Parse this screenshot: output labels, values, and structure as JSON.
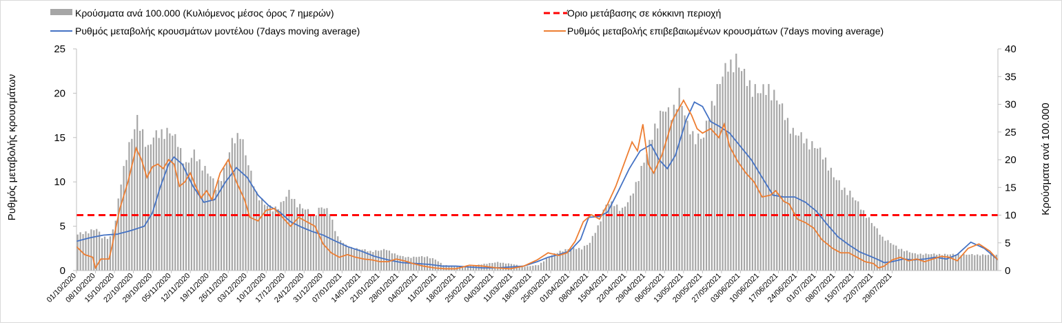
{
  "chart_data": {
    "type": "bar+line",
    "title": "",
    "legend": [
      {
        "key": "bars",
        "label": "Κρούσματα ανά 100.000 (Κυλιόμενος μέσος όρος 7 ημερών)",
        "color": "#a6a6a6"
      },
      {
        "key": "threshold",
        "label": "Όριο μετάβασης σε κόκκινη περιοχή",
        "color": "#ff0000"
      },
      {
        "key": "model",
        "label": "Ρυθμός μεταβολής κρουσμάτων μοντέλου (7days moving average)",
        "color": "#4472c4"
      },
      {
        "key": "confirmed",
        "label": "Ρυθμός μεταβολής επιβεβαιωμένων κρουσμάτων (7days moving average)",
        "color": "#ed7d31"
      }
    ],
    "ylabel_left": "Ρυθμός μεταβολής κρουσμάτων",
    "ylabel_right": "Κρούσματα ανά 100.000",
    "ylim_left": [
      0,
      25
    ],
    "yticks_left": [
      "0",
      "5",
      "10",
      "15",
      "20",
      "25"
    ],
    "ylim_right": [
      0,
      40
    ],
    "yticks_right": [
      "0",
      "5",
      "10",
      "15",
      "20",
      "25",
      "30",
      "35",
      "40"
    ],
    "threshold_left": 6.25,
    "x_tick_labels": [
      "01/10/2020",
      "08/10/2020",
      "15/10/2020",
      "22/10/2020",
      "29/10/2020",
      "05/11/2020",
      "12/11/2020",
      "19/11/2020",
      "26/11/2020",
      "03/12/2020",
      "10/12/2020",
      "17/12/2020",
      "24/12/2020",
      "31/12/2020",
      "07/01/2021",
      "14/01/2021",
      "21/01/2021",
      "28/01/2021",
      "04/02/2021",
      "11/02/2021",
      "18/02/2021",
      "25/02/2021",
      "04/03/2021",
      "11/03/2021",
      "18/03/2021",
      "25/03/2021",
      "01/04/2021",
      "08/04/2021",
      "15/04/2021",
      "22/04/2021",
      "29/04/2021",
      "06/05/2021",
      "13/05/2021",
      "20/05/2021",
      "27/05/2021",
      "03/06/2021",
      "10/06/2021",
      "17/06/2021",
      "24/06/2021",
      "01/07/2021",
      "08/07/2021",
      "15/07/2021",
      "22/07/2021",
      "29/07/2021"
    ],
    "days": 310,
    "bars_keypoints_right_axis": [
      [
        0,
        6.5
      ],
      [
        7,
        7.5
      ],
      [
        9,
        6
      ],
      [
        12,
        6
      ],
      [
        14,
        9
      ],
      [
        16,
        16
      ],
      [
        18,
        21
      ],
      [
        20,
        24
      ],
      [
        22,
        27
      ],
      [
        24,
        25
      ],
      [
        26,
        22
      ],
      [
        28,
        24
      ],
      [
        31,
        25
      ],
      [
        34,
        25
      ],
      [
        37,
        23
      ],
      [
        40,
        19
      ],
      [
        43,
        21
      ],
      [
        46,
        19
      ],
      [
        49,
        17
      ],
      [
        51,
        15
      ],
      [
        54,
        18
      ],
      [
        57,
        23
      ],
      [
        60,
        25
      ],
      [
        63,
        19
      ],
      [
        66,
        14
      ],
      [
        69,
        12
      ],
      [
        72,
        11
      ],
      [
        75,
        12
      ],
      [
        78,
        14
      ],
      [
        81,
        12
      ],
      [
        84,
        11
      ],
      [
        87,
        10
      ],
      [
        90,
        11.5
      ],
      [
        93,
        10.5
      ],
      [
        96,
        6
      ],
      [
        99,
        4.5
      ],
      [
        102,
        4
      ],
      [
        105,
        3.8
      ],
      [
        108,
        3.5
      ],
      [
        111,
        3.6
      ],
      [
        114,
        3.8
      ],
      [
        117,
        3
      ],
      [
        120,
        2.5
      ],
      [
        123,
        2.4
      ],
      [
        126,
        2.5
      ],
      [
        129,
        2.5
      ],
      [
        132,
        2
      ],
      [
        135,
        1
      ],
      [
        140,
        0.8
      ],
      [
        145,
        0.8
      ],
      [
        150,
        1.2
      ],
      [
        155,
        1.5
      ],
      [
        160,
        1.2
      ],
      [
        165,
        0.7
      ],
      [
        170,
        1
      ],
      [
        174,
        2.5
      ],
      [
        178,
        3.5
      ],
      [
        182,
        4
      ],
      [
        186,
        4
      ],
      [
        189,
        5
      ],
      [
        192,
        8
      ],
      [
        195,
        12
      ],
      [
        198,
        12
      ],
      [
        201,
        11
      ],
      [
        204,
        13
      ],
      [
        207,
        17
      ],
      [
        210,
        21
      ],
      [
        213,
        26
      ],
      [
        216,
        29
      ],
      [
        219,
        28
      ],
      [
        222,
        32
      ],
      [
        225,
        26
      ],
      [
        228,
        24
      ],
      [
        231,
        24
      ],
      [
        234,
        30
      ],
      [
        237,
        34
      ],
      [
        240,
        37
      ],
      [
        243,
        38
      ],
      [
        246,
        35
      ],
      [
        249,
        33
      ],
      [
        252,
        32
      ],
      [
        255,
        33
      ],
      [
        258,
        31
      ],
      [
        261,
        28
      ],
      [
        264,
        25
      ],
      [
        267,
        24
      ],
      [
        270,
        23
      ],
      [
        273,
        22
      ],
      [
        276,
        20
      ],
      [
        279,
        17
      ],
      [
        282,
        15
      ],
      [
        285,
        14
      ],
      [
        288,
        12
      ],
      [
        291,
        10
      ],
      [
        294,
        8
      ],
      [
        297,
        6
      ],
      [
        300,
        5
      ],
      [
        303,
        4
      ],
      [
        306,
        3.5
      ],
      [
        309,
        3
      ]
    ],
    "model_keypoints_left_axis": [
      [
        0,
        3.3
      ],
      [
        5,
        3.7
      ],
      [
        10,
        4
      ],
      [
        15,
        4.1
      ],
      [
        20,
        4.5
      ],
      [
        25,
        5
      ],
      [
        28,
        6.5
      ],
      [
        31,
        9.5
      ],
      [
        34,
        12
      ],
      [
        36,
        12.8
      ],
      [
        39,
        12
      ],
      [
        43,
        9.5
      ],
      [
        47,
        7.7
      ],
      [
        51,
        8
      ],
      [
        55,
        10
      ],
      [
        59,
        11.6
      ],
      [
        63,
        10.5
      ],
      [
        67,
        8.5
      ],
      [
        71,
        7.3
      ],
      [
        75,
        6.6
      ],
      [
        79,
        5.5
      ],
      [
        83,
        4.9
      ],
      [
        87,
        4.4
      ],
      [
        91,
        4
      ],
      [
        95,
        3.4
      ],
      [
        100,
        2.7
      ],
      [
        105,
        2.2
      ],
      [
        110,
        1.6
      ],
      [
        115,
        1.2
      ],
      [
        120,
        0.9
      ],
      [
        125,
        0.8
      ],
      [
        130,
        0.7
      ],
      [
        135,
        0.5
      ],
      [
        140,
        0.5
      ],
      [
        145,
        0.4
      ],
      [
        150,
        0.3
      ],
      [
        155,
        0.3
      ],
      [
        160,
        0.4
      ],
      [
        165,
        0.5
      ],
      [
        170,
        1
      ],
      [
        174,
        1.5
      ],
      [
        178,
        1.8
      ],
      [
        182,
        2.2
      ],
      [
        186,
        3.5
      ],
      [
        189,
        6
      ],
      [
        193,
        6.1
      ],
      [
        196,
        6.6
      ],
      [
        200,
        9
      ],
      [
        204,
        11.5
      ],
      [
        208,
        13.5
      ],
      [
        212,
        14.2
      ],
      [
        215,
        12.5
      ],
      [
        218,
        11.5
      ],
      [
        221,
        13
      ],
      [
        225,
        17
      ],
      [
        228,
        19
      ],
      [
        231,
        18.5
      ],
      [
        234,
        16.8
      ],
      [
        237,
        16.3
      ],
      [
        241,
        15.5
      ],
      [
        245,
        14
      ],
      [
        249,
        12.5
      ],
      [
        253,
        10.5
      ],
      [
        257,
        8.5
      ],
      [
        261,
        8.3
      ],
      [
        265,
        8.3
      ],
      [
        269,
        7.7
      ],
      [
        273,
        6.7
      ],
      [
        277,
        5.2
      ],
      [
        281,
        3.8
      ],
      [
        285,
        2.9
      ],
      [
        289,
        2.1
      ],
      [
        293,
        1.6
      ],
      [
        296,
        1.2
      ],
      [
        298,
        0.9
      ],
      [
        301,
        1
      ],
      [
        305,
        1.3
      ],
      [
        309,
        1.2
      ],
      [
        313,
        1.3
      ],
      [
        317,
        1.5
      ],
      [
        321,
        1.3
      ],
      [
        325,
        1.8
      ],
      [
        330,
        3.2
      ],
      [
        335,
        2.5
      ],
      [
        340,
        1.2
      ]
    ],
    "confirmed_keypoints_left_axis": [
      [
        0,
        2.7
      ],
      [
        3,
        1.8
      ],
      [
        6,
        1.5
      ],
      [
        7,
        0.3
      ],
      [
        9,
        1.3
      ],
      [
        12,
        1.3
      ],
      [
        13,
        2.6
      ],
      [
        16,
        7
      ],
      [
        19,
        10
      ],
      [
        22,
        13.8
      ],
      [
        24,
        12.5
      ],
      [
        26,
        10.5
      ],
      [
        28,
        11.7
      ],
      [
        30,
        12
      ],
      [
        32,
        11.5
      ],
      [
        34,
        12.5
      ],
      [
        36,
        12
      ],
      [
        38,
        9.5
      ],
      [
        40,
        10
      ],
      [
        42,
        11
      ],
      [
        44,
        9.5
      ],
      [
        46,
        8.2
      ],
      [
        48,
        9
      ],
      [
        50,
        8
      ],
      [
        53,
        11
      ],
      [
        56,
        12.5
      ],
      [
        59,
        10
      ],
      [
        62,
        8
      ],
      [
        64,
        6
      ],
      [
        67,
        5.6
      ],
      [
        70,
        6.8
      ],
      [
        73,
        7
      ],
      [
        76,
        6
      ],
      [
        79,
        5
      ],
      [
        82,
        6
      ],
      [
        85,
        5.5
      ],
      [
        88,
        5
      ],
      [
        91,
        3
      ],
      [
        94,
        2
      ],
      [
        97,
        1.5
      ],
      [
        100,
        1.8
      ],
      [
        103,
        1.5
      ],
      [
        106,
        1.3
      ],
      [
        109,
        1.2
      ],
      [
        112,
        1
      ],
      [
        115,
        1
      ],
      [
        118,
        1.3
      ],
      [
        121,
        1.1
      ],
      [
        124,
        0.8
      ],
      [
        128,
        0.5
      ],
      [
        132,
        0.3
      ],
      [
        136,
        0.2
      ],
      [
        140,
        0.2
      ],
      [
        145,
        0.6
      ],
      [
        150,
        0.5
      ],
      [
        155,
        0.3
      ],
      [
        160,
        0.2
      ],
      [
        165,
        0.5
      ],
      [
        170,
        1.2
      ],
      [
        174,
        2
      ],
      [
        178,
        1.7
      ],
      [
        181,
        2
      ],
      [
        184,
        3.3
      ],
      [
        187,
        5.5
      ],
      [
        190,
        6.3
      ],
      [
        193,
        5.8
      ],
      [
        196,
        7.5
      ],
      [
        199,
        9.5
      ],
      [
        202,
        12
      ],
      [
        205,
        14.5
      ],
      [
        207,
        13.5
      ],
      [
        209,
        16.5
      ],
      [
        211,
        12
      ],
      [
        213,
        11
      ],
      [
        216,
        13
      ],
      [
        220,
        17
      ],
      [
        224,
        19.2
      ],
      [
        227,
        17.5
      ],
      [
        229,
        16
      ],
      [
        231,
        15.5
      ],
      [
        234,
        16
      ],
      [
        237,
        15
      ],
      [
        239,
        16.5
      ],
      [
        241,
        14
      ],
      [
        244,
        12.3
      ],
      [
        247,
        11
      ],
      [
        250,
        10
      ],
      [
        253,
        8.3
      ],
      [
        256,
        8.5
      ],
      [
        258,
        9
      ],
      [
        261,
        7.8
      ],
      [
        263,
        7.5
      ],
      [
        266,
        5.8
      ],
      [
        269,
        5.4
      ],
      [
        272,
        4.8
      ],
      [
        275,
        3.5
      ],
      [
        277,
        3
      ],
      [
        279,
        2.5
      ],
      [
        282,
        2
      ],
      [
        285,
        2
      ],
      [
        288,
        1.5
      ],
      [
        291,
        1
      ],
      [
        294,
        0.8
      ],
      [
        296,
        0.3
      ],
      [
        298,
        0.5
      ],
      [
        301,
        1.2
      ],
      [
        304,
        1.5
      ],
      [
        307,
        1.1
      ],
      [
        310,
        1.3
      ],
      [
        313,
        1
      ],
      [
        316,
        1.3
      ],
      [
        319,
        1.6
      ],
      [
        322,
        1.5
      ],
      [
        325,
        1.1
      ],
      [
        329,
        2.5
      ],
      [
        333,
        3
      ],
      [
        337,
        2.2
      ],
      [
        340,
        1.2
      ]
    ]
  }
}
